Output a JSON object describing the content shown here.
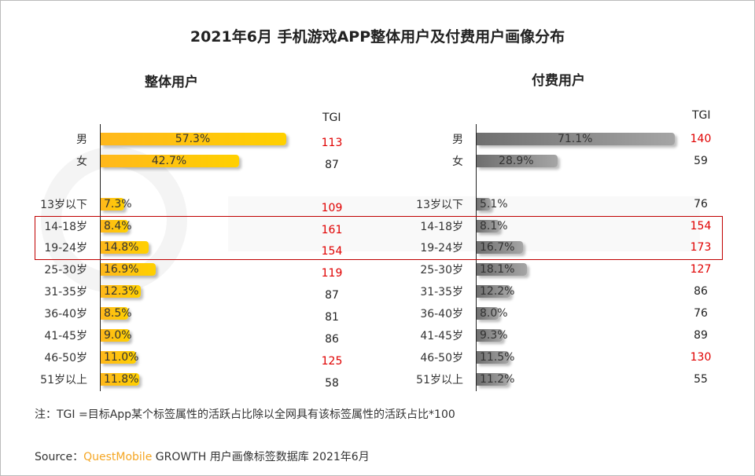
{
  "chart_data": [
    {
      "type": "bar",
      "title": "2021年6月 手机游戏APP整体用户及付费用户画像分布",
      "subtitle": "整体用户",
      "categories": [
        "男",
        "女",
        "13岁以下",
        "14-18岁",
        "19-24岁",
        "25-30岁",
        "31-35岁",
        "36-40岁",
        "41-45岁",
        "46-50岁",
        "51岁以上"
      ],
      "values": [
        57.3,
        42.7,
        7.3,
        8.4,
        14.8,
        16.9,
        12.3,
        8.5,
        9.0,
        11.0,
        11.8
      ],
      "value_labels": [
        "57.3%",
        "42.7%",
        "7.3%",
        "8.4%",
        "14.8%",
        "16.9%",
        "12.3%",
        "8.5%",
        "9.0%",
        "11.0%",
        "11.8%"
      ],
      "tgi_header": "TGI",
      "tgi": [
        113,
        87,
        109,
        161,
        154,
        119,
        87,
        81,
        86,
        125,
        58
      ],
      "color": "#ffc000"
    },
    {
      "type": "bar",
      "subtitle": "付费用户",
      "categories": [
        "男",
        "女",
        "13岁以下",
        "14-18岁",
        "19-24岁",
        "25-30岁",
        "31-35岁",
        "36-40岁",
        "41-45岁",
        "46-50岁",
        "51岁以上"
      ],
      "values": [
        71.1,
        28.9,
        5.1,
        8.1,
        16.7,
        18.1,
        12.2,
        8.0,
        9.3,
        11.5,
        11.2
      ],
      "value_labels": [
        "71.1%",
        "28.9%",
        "5.1%",
        "8.1%",
        "16.7%",
        "18.1%",
        "12.2%",
        "8.0%",
        "9.3%",
        "11.5%",
        "11.2%"
      ],
      "tgi_header": "TGI",
      "tgi": [
        140,
        59,
        76,
        154,
        173,
        127,
        86,
        76,
        89,
        130,
        55
      ],
      "color": "#808080"
    }
  ],
  "highlight_color": "#c00000",
  "highlight_rows": [
    "14-18岁",
    "19-24岁"
  ],
  "tgi_high_color": "#e00000",
  "watermark": "QUESTMOBILE",
  "note": "注：TGI =目标App某个标签属性的活跃占比除以全网具有该标签属性的活跃占比*100",
  "source": {
    "prefix": "Source：",
    "brand": "QuestMobile",
    "text": " GROWTH 用户画像标签数据库 2021年6月"
  }
}
